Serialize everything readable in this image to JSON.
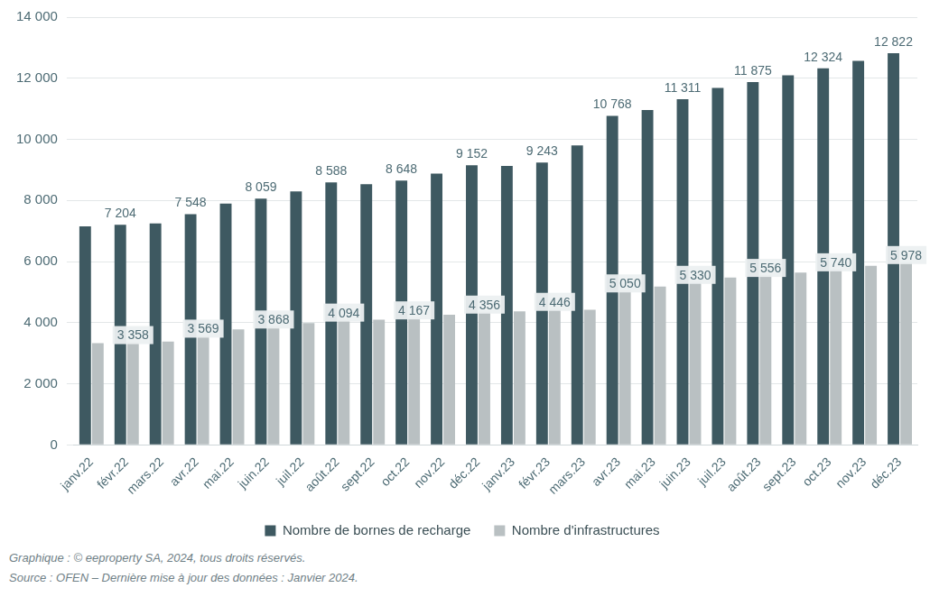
{
  "chart_data": {
    "type": "bar",
    "categories": [
      "janv.22",
      "févr.22",
      "mars.22",
      "avr.22",
      "mai.22",
      "juin.22",
      "juil.22",
      "août.22",
      "sept.22",
      "oct.22",
      "nov.22",
      "déc.22",
      "janv.23",
      "févr.23",
      "mars.23",
      "avr.23",
      "mai.23",
      "juin.23",
      "juil.23",
      "août.23",
      "sept.23",
      "oct.23",
      "nov.23",
      "déc.23"
    ],
    "series": [
      {
        "name": "Nombre de bornes de recharge",
        "color": "#3e5961",
        "values": [
          7150,
          7204,
          7250,
          7548,
          7900,
          8059,
          8300,
          8588,
          8530,
          8648,
          8880,
          9152,
          9130,
          9243,
          9800,
          10768,
          10960,
          11311,
          11680,
          11875,
          12100,
          12324,
          12570,
          12822
        ],
        "value_labels": [
          null,
          "7 204",
          null,
          "7 548",
          null,
          "8 059",
          null,
          "8 588",
          null,
          "8 648",
          null,
          "9 152",
          null,
          "9 243",
          null,
          "10 768",
          null,
          "11 311",
          null,
          "11 875",
          null,
          "12 324",
          null,
          "12 822"
        ]
      },
      {
        "name": "Nombre d'infrastructures",
        "color": "#b9c0c2",
        "values": [
          3330,
          3358,
          3380,
          3569,
          3780,
          3868,
          3990,
          4094,
          4100,
          4167,
          4260,
          4356,
          4370,
          4446,
          4420,
          5050,
          5180,
          5330,
          5480,
          5556,
          5640,
          5740,
          5860,
          5978
        ],
        "value_labels": [
          null,
          "3 358",
          null,
          "3 569",
          null,
          "3 868",
          null,
          "4 094",
          null,
          "4 167",
          null,
          "4 356",
          null,
          "4 446",
          null,
          "5 050",
          null,
          "5 330",
          null,
          "5 556",
          null,
          "5 740",
          null,
          "5 978"
        ]
      }
    ],
    "ylim": [
      0,
      14000
    ],
    "yticks": [
      0,
      {
        "value": 2000,
        "label": "2 000"
      },
      {
        "value": 4000,
        "label": "4 000"
      },
      {
        "value": 6000,
        "label": "6 000"
      },
      {
        "value": 8000,
        "label": "8 000"
      },
      {
        "value": 10000,
        "label": "10 000"
      },
      {
        "value": 12000,
        "label": "12 000"
      },
      {
        "value": 14000,
        "label": "14 000"
      }
    ],
    "grid": true,
    "legend": "bottom",
    "data_labels": true
  },
  "notes": [
    "Graphique : © eeproperty SA, 2024, tous droits réservés.",
    "Source : OFEN – Dernière mise à jour des données : Janvier 2024."
  ]
}
